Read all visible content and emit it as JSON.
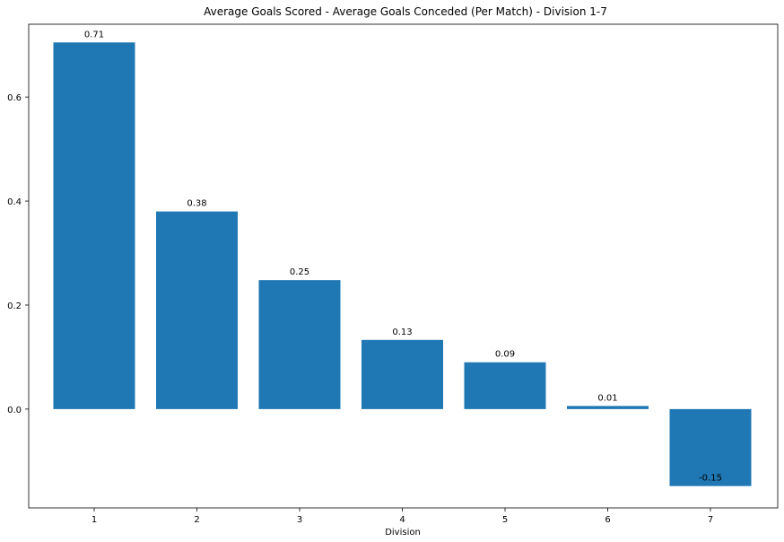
{
  "chart_data": {
    "type": "bar",
    "title": "Average Goals Scored - Average Goals Conceded (Per Match) - Division 1-7",
    "xlabel": "Division",
    "ylabel": "",
    "categories": [
      "1",
      "2",
      "3",
      "4",
      "5",
      "6",
      "7"
    ],
    "values": [
      0.705,
      0.38,
      0.248,
      0.133,
      0.09,
      0.006,
      -0.148
    ],
    "data_labels": [
      "0.71",
      "0.38",
      "0.25",
      "0.13",
      "0.09",
      "0.01",
      "-0.15"
    ],
    "yticks": [
      0.0,
      0.2,
      0.4,
      0.6
    ],
    "ytick_labels": [
      "0.0",
      "0.2",
      "0.4",
      "0.6"
    ],
    "ylim": [
      -0.19,
      0.74
    ],
    "grid": false,
    "bar_color": "#1f77b4"
  }
}
